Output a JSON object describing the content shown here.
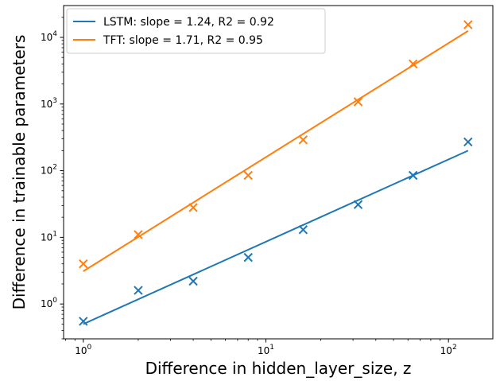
{
  "chart_data": {
    "type": "scatter",
    "xlabel": "Difference in hidden_layer_size, z",
    "ylabel": "Difference in trainable parameters",
    "xscale": "log",
    "yscale": "log",
    "xlim": [
      0.78,
      175
    ],
    "ylim": [
      0.3,
      30000
    ],
    "x_ticks": [
      {
        "value": 1,
        "base": "10",
        "exp": "0"
      },
      {
        "value": 10,
        "base": "10",
        "exp": "1"
      },
      {
        "value": 100,
        "base": "10",
        "exp": "2"
      }
    ],
    "y_ticks": [
      {
        "value": 1,
        "base": "10",
        "exp": "0"
      },
      {
        "value": 10,
        "base": "10",
        "exp": "1"
      },
      {
        "value": 100,
        "base": "10",
        "exp": "2"
      },
      {
        "value": 1000,
        "base": "10",
        "exp": "3"
      },
      {
        "value": 10000,
        "base": "10",
        "exp": "4"
      }
    ],
    "legend_position": "top-left",
    "grid": false,
    "series": [
      {
        "name": "LSTM: slope = 1.24, R2 = 0.92",
        "color": "#1f77b4",
        "marker": "x",
        "x": [
          1,
          2,
          4,
          8,
          16,
          32,
          64,
          128
        ],
        "y": [
          0.55,
          1.6,
          2.2,
          5.0,
          13,
          31,
          85,
          270
        ],
        "fit": {
          "x": [
            1,
            128
          ],
          "y": [
            0.5,
            200
          ]
        }
      },
      {
        "name": "TFT: slope = 1.71, R2 = 0.95",
        "color": "#ff7f0e",
        "marker": "x",
        "x": [
          1,
          2,
          4,
          8,
          16,
          32,
          64,
          128
        ],
        "y": [
          4.0,
          11,
          28,
          85,
          290,
          1080,
          4000,
          15500
        ],
        "fit": {
          "x": [
            1,
            128
          ],
          "y": [
            3.1,
            12500
          ]
        }
      }
    ]
  }
}
